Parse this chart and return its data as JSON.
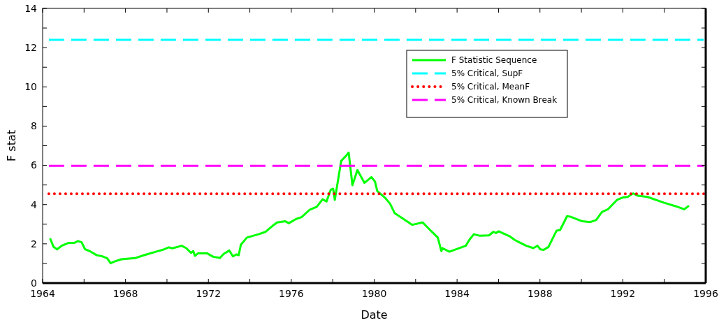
{
  "chart_data": {
    "type": "line",
    "xlabel": "Date",
    "ylabel": "F stat",
    "xlim": [
      1964,
      1996
    ],
    "ylim": [
      0,
      14
    ],
    "xticks": [
      1964,
      {
        "value": 1966,
        "label": null
      },
      1968,
      {
        "value": 1970,
        "label": null
      },
      1972,
      {
        "value": 1974,
        "label": null
      },
      1976,
      {
        "value": 1978,
        "label": null
      },
      1980,
      {
        "value": 1982,
        "label": null
      },
      1984,
      {
        "value": 1986,
        "label": null
      },
      1988,
      {
        "value": 1990,
        "label": null
      },
      1992,
      {
        "value": 1994,
        "label": null
      },
      1996
    ],
    "yticks": [
      0,
      {
        "value": 1,
        "label": null
      },
      2,
      {
        "value": 3,
        "label": null
      },
      4,
      {
        "value": 5,
        "label": null
      },
      6,
      {
        "value": 7,
        "label": null
      },
      8,
      {
        "value": 9,
        "label": null
      },
      10,
      {
        "value": 11,
        "label": null
      },
      12,
      {
        "value": 13,
        "label": null
      },
      14
    ],
    "grid": false,
    "legend": "top right",
    "series": [
      {
        "name": "F Statistic Sequence",
        "color": "#00ff00",
        "line_style": "solid",
        "x": [
          1964.36,
          1964.53,
          1964.7,
          1964.92,
          1965.26,
          1965.54,
          1965.71,
          1965.88,
          1966.05,
          1966.27,
          1966.61,
          1966.89,
          1967.11,
          1967.28,
          1967.45,
          1967.79,
          1968.46,
          1968.8,
          1969.02,
          1969.47,
          1969.81,
          1970.09,
          1970.26,
          1970.71,
          1970.93,
          1971.16,
          1971.27,
          1971.35,
          1971.49,
          1971.95,
          1972.23,
          1972.56,
          1972.73,
          1973.01,
          1973.18,
          1973.35,
          1973.46,
          1973.57,
          1973.86,
          1974.42,
          1974.76,
          1975.09,
          1975.32,
          1975.71,
          1975.88,
          1976.22,
          1976.5,
          1976.89,
          1977.23,
          1977.51,
          1977.7,
          1977.9,
          1978.02,
          1978.1,
          1978.41,
          1978.63,
          1978.77,
          1978.95,
          1979.19,
          1979.53,
          1979.87,
          1980.04,
          1980.15,
          1980.54,
          1980.77,
          1980.99,
          1981.5,
          1981.84,
          1982.34,
          1982.73,
          1983.07,
          1983.24,
          1983.29,
          1983.63,
          1984.42,
          1984.59,
          1984.81,
          1985.1,
          1985.54,
          1985.75,
          1985.88,
          1986.0,
          1986.56,
          1986.78,
          1987.0,
          1987.34,
          1987.68,
          1987.88,
          1988.02,
          1988.18,
          1988.41,
          1988.8,
          1988.97,
          1989.31,
          1989.48,
          1990.04,
          1990.43,
          1990.71,
          1990.99,
          1991.28,
          1991.72,
          1992.0,
          1992.23,
          1992.49,
          1992.73,
          1993.19,
          1993.97,
          1994.54,
          1994.96,
          1995.19
        ],
        "values": [
          2.28,
          1.84,
          1.72,
          1.9,
          2.05,
          2.05,
          2.14,
          2.08,
          1.72,
          1.63,
          1.42,
          1.36,
          1.27,
          1.01,
          1.09,
          1.21,
          1.27,
          1.39,
          1.46,
          1.6,
          1.7,
          1.82,
          1.77,
          1.9,
          1.78,
          1.54,
          1.63,
          1.39,
          1.51,
          1.51,
          1.34,
          1.28,
          1.48,
          1.66,
          1.36,
          1.46,
          1.42,
          1.96,
          2.32,
          2.49,
          2.61,
          2.91,
          3.09,
          3.15,
          3.05,
          3.26,
          3.36,
          3.74,
          3.89,
          4.27,
          4.16,
          4.75,
          4.81,
          4.24,
          6.23,
          6.47,
          6.65,
          4.99,
          5.76,
          5.11,
          5.4,
          5.17,
          4.69,
          4.33,
          4.04,
          3.56,
          3.21,
          2.97,
          3.09,
          2.67,
          2.32,
          1.63,
          1.78,
          1.6,
          1.9,
          2.2,
          2.49,
          2.41,
          2.43,
          2.61,
          2.55,
          2.64,
          2.37,
          2.2,
          2.08,
          1.9,
          1.78,
          1.9,
          1.72,
          1.69,
          1.84,
          2.67,
          2.7,
          3.41,
          3.38,
          3.15,
          3.11,
          3.21,
          3.62,
          3.76,
          4.24,
          4.36,
          4.39,
          4.57,
          4.45,
          4.39,
          4.1,
          3.92,
          3.76,
          3.94
        ]
      },
      {
        "name": "5% Critical, SupF",
        "color": "#00ffff",
        "line_style": "dashed",
        "x": [
          1964.3,
          1995.9
        ],
        "values": [
          12.4,
          12.4
        ]
      },
      {
        "name": "5% Critical, MeanF",
        "color": "#ff0000",
        "line_style": "dotted",
        "x": [
          1964.3,
          1995.9
        ],
        "values": [
          4.55,
          4.55
        ]
      },
      {
        "name": "5% Critical, Known Break",
        "color": "#ff00ff",
        "line_style": "dashed",
        "x": [
          1964.3,
          1995.9
        ],
        "values": [
          5.98,
          5.98
        ]
      }
    ]
  }
}
